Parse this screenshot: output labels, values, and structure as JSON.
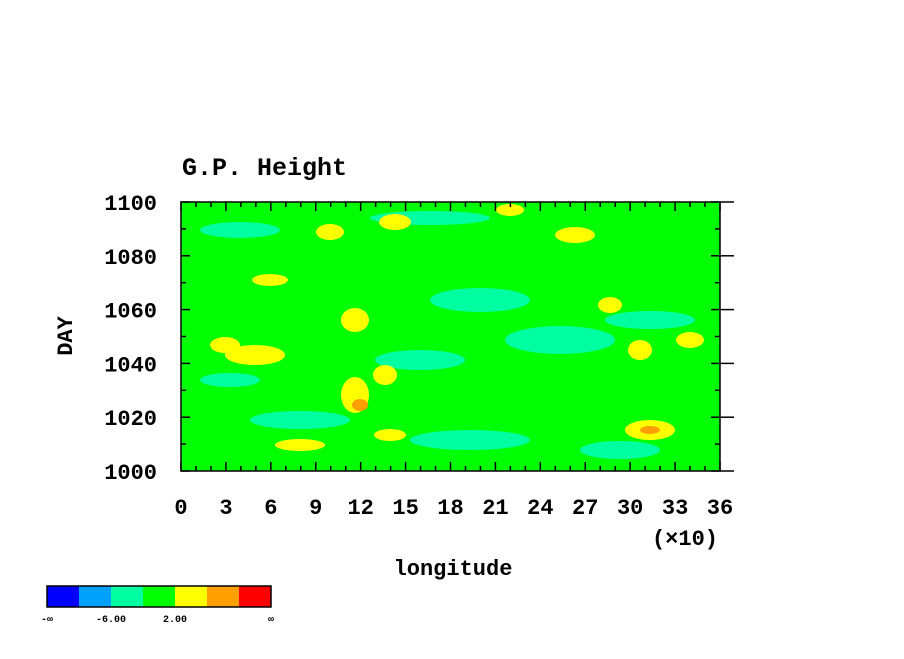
{
  "chart_data": {
    "type": "heatmap",
    "title": "G.P. Height",
    "x_label": "longitude",
    "y_label": "DAY",
    "x_multiplier": "(×10)",
    "xlim": [
      0,
      36
    ],
    "xticks": [
      0,
      3,
      6,
      9,
      12,
      15,
      18,
      21,
      24,
      27,
      30,
      33,
      36
    ],
    "ylim": [
      1000,
      1100
    ],
    "yticks": [
      1000,
      1020,
      1040,
      1060,
      1080,
      1100
    ],
    "colorbar": {
      "colors": [
        "#0000ff",
        "#00a0ff",
        "#00ffa0",
        "#00ff00",
        "#ffff00",
        "#ffa000",
        "#ff0000"
      ],
      "labels": [
        "-∞",
        "-6.00",
        "2.00",
        "∞"
      ]
    }
  }
}
